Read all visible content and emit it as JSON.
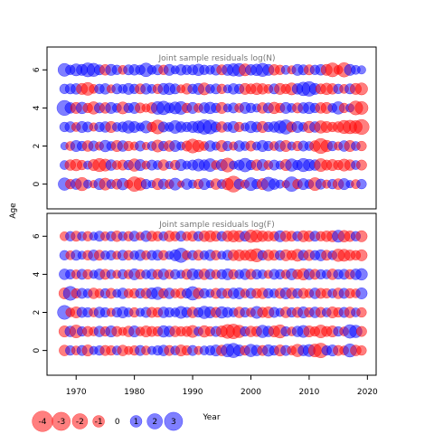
{
  "chart_data": {
    "type": "scatter",
    "subtype": "bubble-residuals",
    "xlabel": "Year",
    "ylabel": "Age",
    "xlim": [
      1965,
      2021.5
    ],
    "ylim": [
      -1.3,
      7.2
    ],
    "x_ticks": [
      1970,
      1980,
      1990,
      2000,
      2010,
      2020
    ],
    "y_ticks": [
      0,
      2,
      4,
      6
    ],
    "ages": [
      0,
      1,
      2,
      3,
      4,
      5,
      6
    ],
    "years": [
      1968,
      1969,
      1970,
      1971,
      1972,
      1973,
      1974,
      1975,
      1976,
      1977,
      1978,
      1979,
      1980,
      1981,
      1982,
      1983,
      1984,
      1985,
      1986,
      1987,
      1988,
      1989,
      1990,
      1991,
      1992,
      1993,
      1994,
      1995,
      1996,
      1997,
      1998,
      1999,
      2000,
      2001,
      2002,
      2003,
      2004,
      2005,
      2006,
      2007,
      2008,
      2009,
      2010,
      2011,
      2012,
      2013,
      2014,
      2015,
      2016,
      2017,
      2018,
      2019
    ],
    "positive_color": "#0000FF",
    "negative_color": "#FF0000",
    "legend": {
      "values": [
        -4,
        -3,
        -2,
        -1,
        0,
        1,
        2,
        3
      ],
      "labels": [
        "-4",
        "-3",
        "-2",
        "-1",
        "0",
        "1",
        "2",
        "3"
      ]
    },
    "panels": [
      {
        "title": "Joint sample residuals log(N)",
        "residuals": [
          [
            1.2,
            -0.6,
            0.8,
            -1.4,
            0.4,
            -0.3,
            0.9,
            -1.1,
            0.5,
            -0.7,
            1.0,
            -0.4,
            -1.8,
            -1.2,
            0.6,
            0.3,
            -0.9,
            0.7,
            -0.5,
            1.1,
            -0.2,
            0.8,
            0.4,
            -0.6,
            0.9,
            0.3,
            -0.8,
            0.5,
            -1.0,
            -2.2,
            0.7,
            -0.4,
            1.3,
            0.6,
            -0.9,
            1.6,
            0.8,
            0.4,
            -0.3,
            1.8,
            -0.6,
            0.9,
            0.5,
            -1.3,
            0.7,
            -0.4,
            0.6,
            -0.8,
            0.9,
            0.3,
            -0.5,
            0.6
          ],
          [
            0.5,
            -0.8,
            -1.0,
            -0.6,
            0.4,
            -0.9,
            -1.4,
            -1.1,
            0.8,
            -0.5,
            -0.7,
            0.6,
            -1.2,
            0.9,
            -0.4,
            0.7,
            0.5,
            -0.8,
            0.3,
            -0.6,
            0.9,
            0.4,
            0.7,
            1.1,
            0.8,
            1.3,
            -0.5,
            0.9,
            -1.6,
            0.4,
            0.7,
            1.5,
            0.6,
            -0.8,
            0.9,
            -0.5,
            0.7,
            0.4,
            -0.9,
            1.2,
            0.6,
            1.4,
            1.0,
            0.8,
            -1.3,
            -0.7,
            -0.9,
            -0.6,
            -1.1,
            -0.8,
            0.5,
            -0.7
          ],
          [
            0.3,
            -0.5,
            0.9,
            0.6,
            -0.8,
            0.7,
            -0.4,
            1.0,
            0.5,
            -0.9,
            0.8,
            -0.6,
            -0.4,
            0.7,
            -0.3,
            0.5,
            -1.1,
            0.6,
            -0.8,
            0.9,
            0.4,
            -0.7,
            -1.6,
            -1.0,
            -0.5,
            0.8,
            0.4,
            -0.9,
            0.6,
            -0.4,
            0.8,
            0.5,
            -0.7,
            0.4,
            0.9,
            0.6,
            -0.5,
            0.8,
            -0.9,
            0.4,
            -0.6,
            0.7,
            0.5,
            -0.8,
            -1.9,
            -1.0,
            0.6,
            -0.4,
            0.8,
            -0.9,
            0.5,
            -0.6
          ],
          [
            0.6,
            0.8,
            -0.5,
            0.9,
            0.7,
            -0.4,
            0.6,
            0.8,
            -0.9,
            0.5,
            0.7,
            1.2,
            0.9,
            0.4,
            1.1,
            -0.6,
            -1.6,
            0.7,
            0.5,
            1.3,
            0.8,
            0.6,
            0.9,
            1.1,
            1.8,
            1.6,
            0.7,
            -0.8,
            0.5,
            0.9,
            -0.6,
            0.4,
            1.0,
            0.7,
            -0.9,
            0.6,
            0.8,
            1.2,
            1.7,
            -0.7,
            0.9,
            0.5,
            -1.0,
            0.8,
            -1.2,
            -0.9,
            -0.6,
            -0.8,
            -1.4,
            -1.5,
            -1.3,
            -1.9
          ],
          [
            1.9,
            0.8,
            -0.9,
            1.0,
            -0.6,
            -1.2,
            0.7,
            -0.8,
            0.9,
            0.5,
            -1.1,
            0.6,
            0.9,
            -0.7,
            -0.4,
            -0.8,
            1.3,
            1.5,
            0.7,
            1.1,
            1.3,
            -0.6,
            0.9,
            -0.5,
            0.8,
            1.0,
            0.6,
            -0.9,
            0.4,
            0.7,
            -0.5,
            0.9,
            0.6,
            0.4,
            -0.8,
            0.7,
            -1.0,
            -0.6,
            0.9,
            0.5,
            -0.7,
            0.8,
            1.0,
            0.6,
            -0.8,
            -0.9,
            0.5,
            1.2,
            -0.6,
            0.4,
            -1.6,
            -1.3
          ],
          [
            0.6,
            0.7,
            0.8,
            -0.9,
            -1.3,
            -0.5,
            0.6,
            0.8,
            -0.4,
            0.7,
            0.5,
            0.9,
            0.6,
            -0.7,
            0.8,
            0.5,
            -0.6,
            0.9,
            1.0,
            0.7,
            -0.4,
            -0.8,
            0.6,
            0.9,
            -1.1,
            0.5,
            0.7,
            -0.6,
            0.4,
            0.8,
            0.6,
            -0.9,
            -0.7,
            -1.0,
            -0.8,
            -0.5,
            0.7,
            -0.9,
            -0.6,
            -1.1,
            0.8,
            1.5,
            1.8,
            0.9,
            -0.7,
            -1.0,
            -0.8,
            0.6,
            -0.5,
            0.7,
            -0.9,
            -1.1
          ],
          [
            1.3,
            0.6,
            1.1,
            0.9,
            1.6,
            1.4,
            0.7,
            -0.8,
            0.9,
            0.6,
            -0.5,
            0.7,
            0.8,
            0.6,
            1.5,
            0.5,
            0.7,
            -0.6,
            0.9,
            0.4,
            0.8,
            0.6,
            0.7,
            1.0,
            0.6,
            0.5,
            0.8,
            -0.7,
            0.9,
            1.2,
            1.3,
            -1.1,
            0.8,
            1.0,
            1.4,
            0.9,
            -0.8,
            -0.6,
            0.5,
            -0.4,
            0.9,
            0.7,
            -0.7,
            0.6,
            0.8,
            -0.9,
            -1.6,
            -0.5,
            -1.7,
            0.9,
            0.5,
            0.4
          ]
        ]
      },
      {
        "title": "Joint sample residuals log(F)",
        "residuals": [
          [
            -0.8,
            0.6,
            -0.5,
            0.7,
            -0.9,
            0.4,
            0.6,
            -0.7,
            -0.6,
            0.5,
            -0.8,
            -0.4,
            -0.6,
            0.7,
            -0.5,
            0.4,
            0.6,
            0.8,
            -0.7,
            0.5,
            -0.9,
            -0.6,
            0.7,
            -0.4,
            0.5,
            0.6,
            0.9,
            -0.8,
            1.3,
            1.7,
            0.9,
            -0.6,
            1.2,
            0.8,
            -0.7,
            1.0,
            0.6,
            -0.9,
            0.7,
            -0.5,
            -1.2,
            0.8,
            1.1,
            -1.3,
            -1.8,
            0.6,
            0.9,
            -0.7,
            -0.5,
            1.4,
            -0.8,
            -0.6
          ],
          [
            -0.9,
            0.8,
            -1.3,
            0.6,
            -0.7,
            -0.5,
            0.8,
            -0.6,
            0.9,
            -0.7,
            -0.4,
            -0.8,
            0.9,
            -0.5,
            -0.9,
            -0.7,
            -0.6,
            1.0,
            0.8,
            -0.8,
            -0.6,
            -0.7,
            -1.1,
            0.5,
            -1.0,
            -0.6,
            0.7,
            -0.9,
            -1.6,
            -1.8,
            -1.2,
            0.6,
            -0.8,
            -0.7,
            1.2,
            0.8,
            -0.9,
            -1.4,
            0.6,
            -0.5,
            0.8,
            1.1,
            -0.9,
            -0.6,
            -1.3,
            -0.7,
            -0.9,
            0.6,
            -0.5,
            1.5,
            1.2,
            -0.7
          ],
          [
            1.6,
            -0.5,
            -0.9,
            0.7,
            0.6,
            -0.5,
            0.8,
            0.6,
            -0.4,
            0.6,
            0.9,
            0.5,
            -0.6,
            0.4,
            0.7,
            -0.7,
            -0.6,
            0.8,
            0.6,
            0.5,
            1.1,
            0.7,
            -0.8,
            0.6,
            1.2,
            0.9,
            -0.7,
            1.0,
            0.7,
            0.5,
            -0.8,
            0.6,
            -0.5,
            1.1,
            -0.7,
            -0.9,
            0.7,
            0.4,
            -0.8,
            0.6,
            -0.7,
            0.9,
            -0.6,
            0.8,
            -0.7,
            0.5,
            -0.9,
            -0.6,
            0.7,
            -0.8,
            0.5,
            -0.6
          ],
          [
            -0.9,
            1.6,
            -0.6,
            0.7,
            0.5,
            -0.8,
            -0.5,
            0.6,
            -0.7,
            0.4,
            0.8,
            -0.5,
            -0.6,
            0.6,
            -0.7,
            0.9,
            1.2,
            -0.6,
            0.8,
            -0.5,
            -0.7,
            0.6,
            1.5,
            -0.8,
            0.6,
            0.4,
            -0.7,
            0.7,
            -0.6,
            0.8,
            0.9,
            -0.5,
            0.7,
            -0.6,
            -0.8,
            0.6,
            0.5,
            -0.7,
            0.9,
            -0.8,
            0.6,
            -0.7,
            -0.5,
            0.8,
            -0.7,
            -0.6,
            0.5,
            -0.8,
            0.7,
            -0.6,
            -0.5,
            0.9
          ],
          [
            0.8,
            0.6,
            -0.5,
            0.7,
            -0.6,
            0.4,
            0.8,
            -0.7,
            0.5,
            -0.4,
            0.6,
            -0.5,
            0.9,
            -0.6,
            0.5,
            0.7,
            -0.6,
            0.8,
            -0.5,
            0.6,
            0.4,
            -0.7,
            0.9,
            0.6,
            -0.8,
            0.7,
            -0.5,
            0.6,
            0.9,
            -0.6,
            0.5,
            0.8,
            -0.7,
            0.6,
            0.5,
            -0.4,
            0.7,
            0.6,
            -0.5,
            0.9,
            -0.6,
            -1.0,
            0.8,
            -0.7,
            0.6,
            0.5,
            -0.8,
            0.6,
            0.7,
            -0.6,
            0.8,
            1.0
          ],
          [
            0.6,
            -0.5,
            0.7,
            0.4,
            -0.6,
            0.8,
            -0.7,
            0.5,
            0.6,
            -0.4,
            0.7,
            -0.6,
            0.5,
            0.8,
            -0.5,
            0.6,
            0.7,
            -0.6,
            0.4,
            0.9,
            1.7,
            -0.5,
            0.6,
            -0.7,
            0.5,
            0.8,
            -0.6,
            0.4,
            0.7,
            -0.8,
            -0.9,
            -0.7,
            -1.0,
            -1.4,
            0.6,
            -0.8,
            -0.7,
            0.6,
            -0.9,
            -0.6,
            -1.1,
            0.7,
            -0.8,
            0.6,
            0.9,
            -0.7,
            0.5,
            -1.2,
            -1.1,
            -0.8,
            -0.6,
            -0.9
          ],
          [
            -0.5,
            0.6,
            -0.7,
            0.5,
            -0.6,
            0.4,
            0.7,
            -0.5,
            0.6,
            -0.8,
            0.5,
            -0.6,
            0.7,
            -0.4,
            0.8,
            -0.7,
            -0.6,
            0.5,
            -0.8,
            -0.6,
            0.7,
            -0.5,
            -0.7,
            0.6,
            -0.8,
            -0.9,
            -0.7,
            0.6,
            -0.8,
            -1.0,
            -0.9,
            0.7,
            -1.2,
            -1.1,
            -0.8,
            -0.7,
            -0.6,
            0.9,
            -0.8,
            -0.7,
            0.6,
            -0.9,
            -0.8,
            0.7,
            -0.6,
            -0.8,
            -0.9,
            1.1,
            -1.0,
            -0.8,
            0.6,
            -0.9
          ]
        ]
      }
    ]
  }
}
